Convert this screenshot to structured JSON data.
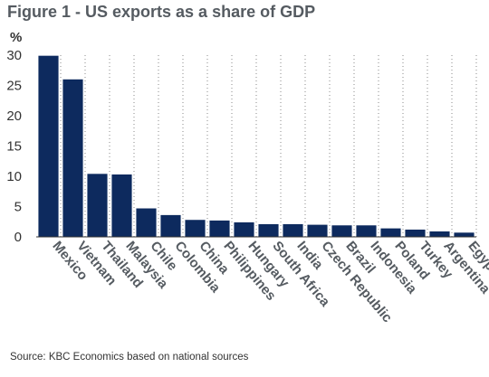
{
  "title": "Figure 1 - US exports as a share of GDP",
  "source": "Source: KBC Economics based on national sources",
  "colors": {
    "bar": "#0d2a5e",
    "title": "#555b61",
    "grid": "#8a8a8a"
  },
  "chart_data": {
    "type": "bar",
    "title": "Figure 1 - US exports as a share of GDP",
    "xlabel": "",
    "ylabel": "%",
    "ylim": [
      0,
      30
    ],
    "yticks": [
      0,
      5,
      10,
      15,
      20,
      25,
      30
    ],
    "grid": "vertical dotted lines between categories",
    "categories": [
      "Mexico",
      "Vietnam",
      "Thailand",
      "Malaysia",
      "Chile",
      "Colombia",
      "China",
      "Philippines",
      "Hungary",
      "South Africa",
      "India",
      "Czech Republic",
      "Brazil",
      "Indonesia",
      "Poland",
      "Turkey",
      "Argentina",
      "Egypt"
    ],
    "values": [
      29.9,
      26.0,
      10.4,
      10.3,
      4.7,
      3.6,
      2.8,
      2.7,
      2.4,
      2.1,
      2.1,
      2.0,
      1.9,
      1.9,
      1.4,
      1.2,
      0.9,
      0.7
    ]
  }
}
